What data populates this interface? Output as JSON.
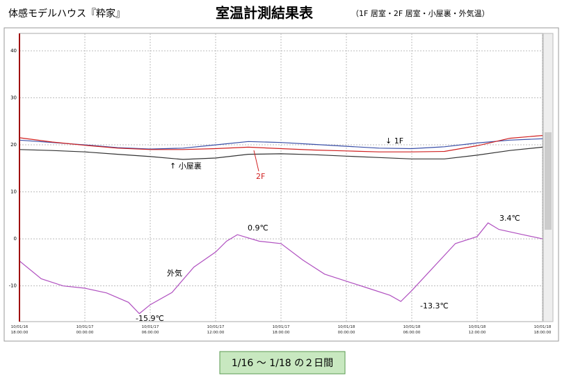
{
  "header": {
    "left": "体感モデルハウス『粋家』",
    "title": "室温計測結果表",
    "right": "（1F 居室・2F 居室・小屋裏・外気温）"
  },
  "chart_data": {
    "type": "line",
    "xlim": [
      "2010-01-16T18:00",
      "2010-01-18T18:00"
    ],
    "xticks": [
      {
        "value": "2010-01-16T18:00",
        "label": "10/01/16\n18:00:00"
      },
      {
        "value": "2010-01-17T00:00",
        "label": "10/01/17\n00:00:00"
      },
      {
        "value": "2010-01-17T06:00",
        "label": "10/01/17\n06:00:00"
      },
      {
        "value": "2010-01-17T12:00",
        "label": "10/01/17\n12:00:00"
      },
      {
        "value": "2010-01-17T18:00",
        "label": "10/01/17\n18:00:00"
      },
      {
        "value": "2010-01-18T00:00",
        "label": "10/01/18\n00:00:00"
      },
      {
        "value": "2010-01-18T06:00",
        "label": "10/01/18\n06:00:00"
      },
      {
        "value": "2010-01-18T12:00",
        "label": "10/01/18\n12:00:00"
      },
      {
        "value": "2010-01-18T18:00",
        "label": "10/01/18\n18:00:00"
      }
    ],
    "ylim": [
      -17.6,
      43.7
    ],
    "yticks": [
      -10,
      0,
      10,
      20,
      30,
      40
    ],
    "grid": true,
    "series": [
      {
        "color": "#3a4fa8",
        "x": [
          "2010-01-16T18:00",
          "2010-01-16T21:00",
          "2010-01-17T00:00",
          "2010-01-17T03:00",
          "2010-01-17T06:00",
          "2010-01-17T09:00",
          "2010-01-17T12:00",
          "2010-01-17T15:00",
          "2010-01-17T18:00",
          "2010-01-17T21:00",
          "2010-01-18T00:00",
          "2010-01-18T03:00",
          "2010-01-18T06:00",
          "2010-01-18T09:00",
          "2010-01-18T12:00",
          "2010-01-18T15:00",
          "2010-01-18T18:00"
        ],
        "values": [
          21,
          20.5,
          20,
          19.4,
          19.1,
          19.3,
          20,
          20.7,
          20.5,
          20.1,
          19.7,
          19.3,
          19.2,
          19.6,
          20.4,
          21,
          21.3
        ]
      },
      {
        "color": "#d02020",
        "x": [
          "2010-01-16T18:00",
          "2010-01-16T21:00",
          "2010-01-17T00:00",
          "2010-01-17T03:00",
          "2010-01-17T06:00",
          "2010-01-17T09:00",
          "2010-01-17T12:00",
          "2010-01-17T15:00",
          "2010-01-17T18:00",
          "2010-01-17T21:00",
          "2010-01-18T00:00",
          "2010-01-18T03:00",
          "2010-01-18T06:00",
          "2010-01-18T09:00",
          "2010-01-18T12:00",
          "2010-01-18T15:00",
          "2010-01-18T18:00"
        ],
        "values": [
          21.5,
          20.6,
          19.9,
          19.3,
          19,
          19,
          19.2,
          19.5,
          19.2,
          18.9,
          18.7,
          18.5,
          18.5,
          18.6,
          19.8,
          21.4,
          22
        ]
      },
      {
        "color": "#333333",
        "x": [
          "2010-01-16T18:00",
          "2010-01-16T21:00",
          "2010-01-17T00:00",
          "2010-01-17T03:00",
          "2010-01-17T06:00",
          "2010-01-17T09:00",
          "2010-01-17T12:00",
          "2010-01-17T15:00",
          "2010-01-17T18:00",
          "2010-01-17T21:00",
          "2010-01-18T00:00",
          "2010-01-18T03:00",
          "2010-01-18T06:00",
          "2010-01-18T09:00",
          "2010-01-18T12:00",
          "2010-01-18T15:00",
          "2010-01-18T18:00"
        ],
        "values": [
          19,
          18.8,
          18.5,
          18,
          17.5,
          16.9,
          17.2,
          18,
          18.1,
          17.9,
          17.6,
          17.3,
          17,
          17,
          17.8,
          18.8,
          19.5
        ]
      },
      {
        "color": "#b050c0",
        "x": [
          "2010-01-16T18:00",
          "2010-01-16T20:00",
          "2010-01-16T22:00",
          "2010-01-17T00:00",
          "2010-01-17T02:00",
          "2010-01-17T04:00",
          "2010-01-17T05:00",
          "2010-01-17T06:00",
          "2010-01-17T08:00",
          "2010-01-17T10:00",
          "2010-01-17T12:00",
          "2010-01-17T13:00",
          "2010-01-17T14:00",
          "2010-01-17T16:00",
          "2010-01-17T18:00",
          "2010-01-17T20:00",
          "2010-01-17T22:00",
          "2010-01-18T00:00",
          "2010-01-18T02:00",
          "2010-01-18T04:00",
          "2010-01-18T05:00",
          "2010-01-18T06:00",
          "2010-01-18T08:00",
          "2010-01-18T10:00",
          "2010-01-18T12:00",
          "2010-01-18T13:00",
          "2010-01-18T14:00",
          "2010-01-18T16:00",
          "2010-01-18T18:00"
        ],
        "values": [
          -4.7,
          -8.5,
          -10,
          -10.5,
          -11.5,
          -13.5,
          -15.9,
          -14,
          -11.4,
          -6,
          -2.8,
          -0.5,
          0.9,
          -0.5,
          -1,
          -4.5,
          -7.5,
          -9,
          -10.5,
          -12,
          -13.3,
          -11,
          -6,
          -1,
          0.5,
          3.4,
          2,
          1,
          0
        ]
      }
    ],
    "annotations": [
      "↓ 1F",
      "↑ 小屋裏",
      "2F",
      "外気",
      "0.9℃",
      "-15.9℃",
      "-13.3℃",
      "3.4℃"
    ]
  },
  "footer": "1/16 ～ 1/18 の２日間"
}
